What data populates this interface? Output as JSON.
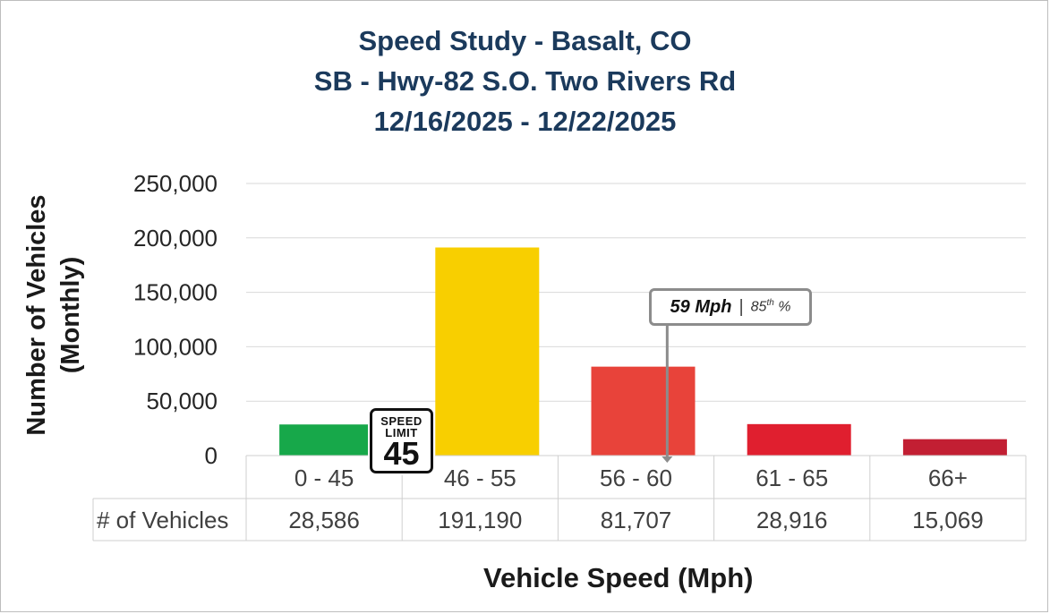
{
  "title": {
    "line1": "Speed Study - Basalt, CO",
    "line2": "SB - Hwy-82 S.O. Two Rivers Rd",
    "line3": "12/16/2025 - 12/22/2025"
  },
  "axes": {
    "ylabel_line1": "Number of Vehicles",
    "ylabel_line2": "(Monthly)",
    "xlabel": "Vehicle Speed (Mph)"
  },
  "speed_limit_sign": {
    "line1": "SPEED",
    "line2": "LIMIT",
    "value": "45"
  },
  "percentile_marker": {
    "speed": "59 Mph",
    "separator": "|",
    "ordinal": "85",
    "ordinal_sup": "th",
    "percent": "%",
    "x_position_mph": 59
  },
  "table": {
    "row_header": "# of Vehicles"
  },
  "colors": {
    "title": "#1b3a5c",
    "bars": [
      "#17a84a",
      "#f8cf00",
      "#e8433a",
      "#e01f2f",
      "#c21f33"
    ],
    "gridline": "#d9d9d9",
    "marker": "#8c8c8c"
  },
  "chart_data": {
    "type": "bar",
    "title": "Speed Study - Basalt, CO / SB - Hwy-82 S.O. Two Rivers Rd / 12/16/2025 - 12/22/2025",
    "xlabel": "Vehicle Speed (Mph)",
    "ylabel": "Number of Vehicles (Monthly)",
    "categories": [
      "0 - 45",
      "46 - 55",
      "56 - 60",
      "61 - 65",
      "66+"
    ],
    "values": [
      28586,
      191190,
      81707,
      28916,
      15069
    ],
    "value_labels": [
      "28,586",
      "191,190",
      "81,707",
      "28,916",
      "15,069"
    ],
    "ylim": [
      0,
      250000
    ],
    "yticks": [
      0,
      50000,
      100000,
      150000,
      200000,
      250000
    ],
    "ytick_labels": [
      "0",
      "50,000",
      "100,000",
      "150,000",
      "200,000",
      "250,000"
    ],
    "grid": true,
    "legend": "none"
  }
}
